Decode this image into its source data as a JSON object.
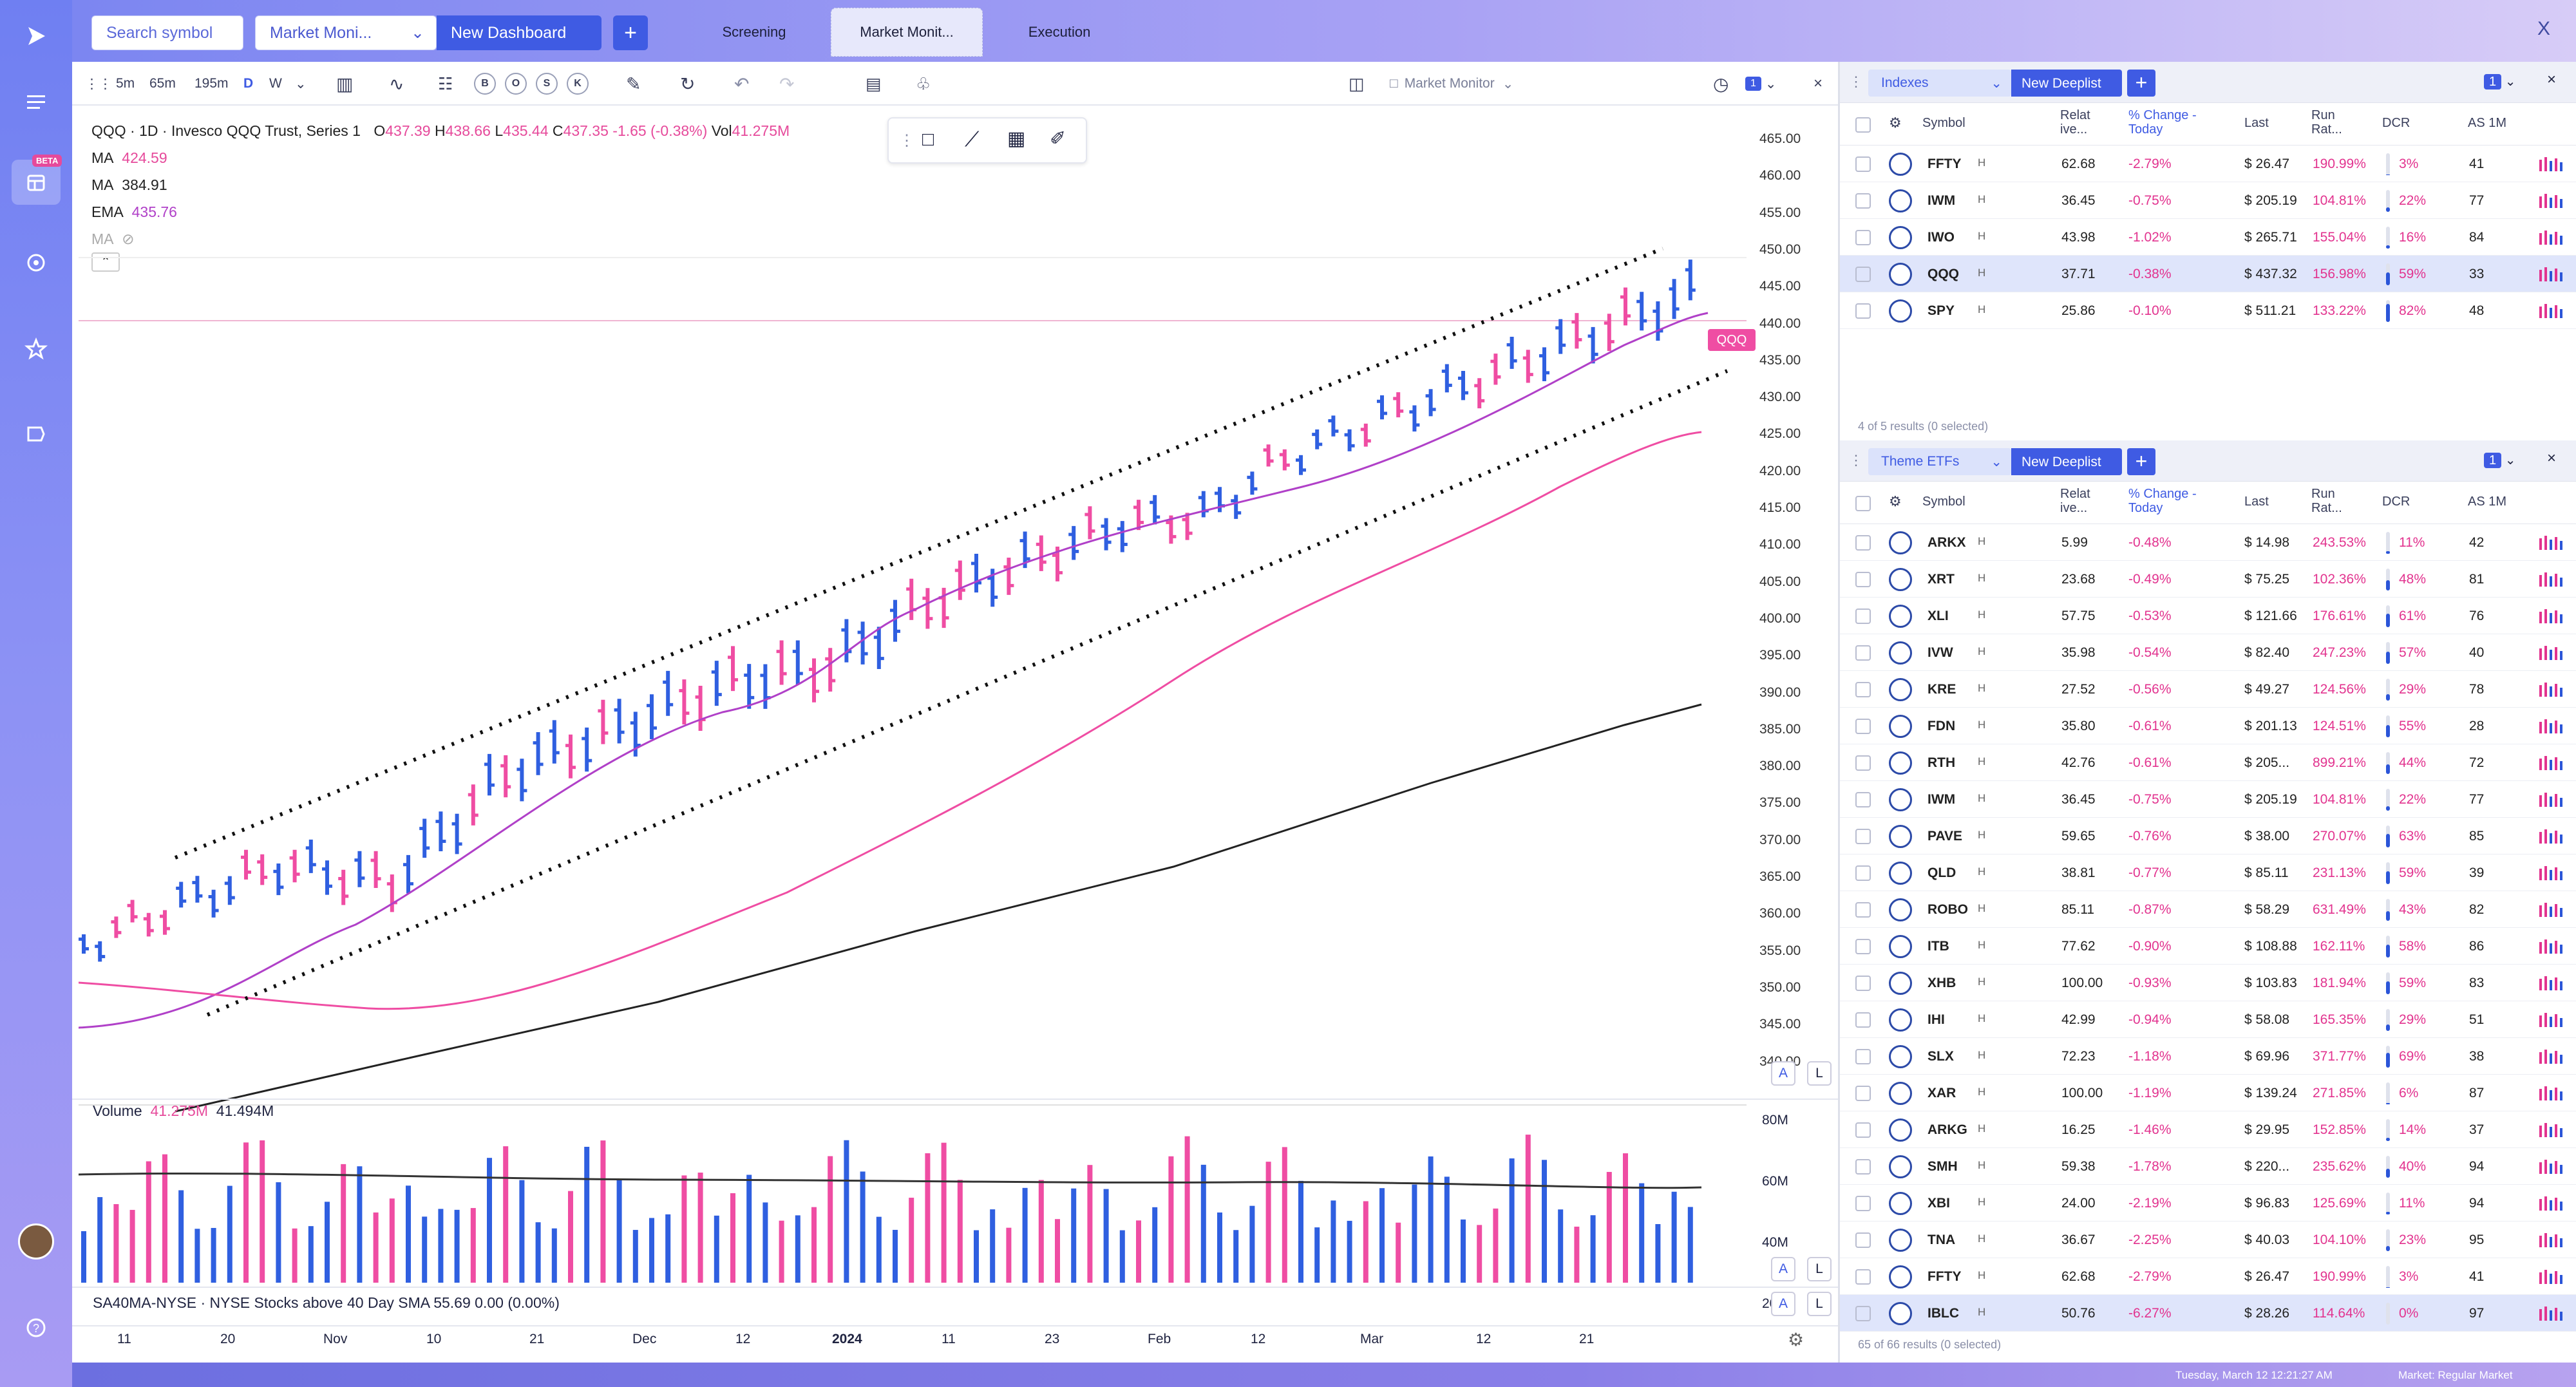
{
  "topbar": {
    "search_label": "Search symbol",
    "dashboard_select": "Market Moni...",
    "new_dashboard": "New Dashboard",
    "add_label": "+",
    "tabs": [
      "Screening",
      "Market Monit...",
      "Execution"
    ],
    "close_label": "X"
  },
  "sidebar": {
    "beta_badge": "BETA"
  },
  "chart_toolbar": {
    "intervals": [
      "5m",
      "65m",
      "195m",
      "D",
      "W"
    ],
    "badges": [
      "B",
      "O",
      "S",
      "K"
    ],
    "layout_name": "Market Monitor",
    "layout_count": "1",
    "close_label": "×"
  },
  "legend": {
    "symbol_line": "QQQ · 1D · Invesco QQQ Trust, Series 1",
    "o_label": "O",
    "o_val": "437.39",
    "h_label": "H",
    "h_val": "438.66",
    "l_label": "L",
    "l_val": "435.44",
    "c_label": "C",
    "c_val": "437.35",
    "chg": "-1.65 (-0.38%)",
    "vol_label": "Vol",
    "vol_val": "41.275M",
    "ma1_label": "MA",
    "ma1_val": "424.59",
    "ma2_label": "MA",
    "ma2_val": "384.91",
    "ema_label": "EMA",
    "ema_val": "435.76",
    "ma3_label": "MA"
  },
  "price_axis": [
    "465.00",
    "460.00",
    "455.00",
    "450.00",
    "445.00",
    "440.00",
    "435.00",
    "430.00",
    "425.00",
    "420.00",
    "415.00",
    "410.00",
    "405.00",
    "400.00",
    "395.00",
    "390.00",
    "385.00",
    "380.00",
    "375.00",
    "370.00",
    "365.00",
    "360.00",
    "355.00",
    "350.00",
    "345.00",
    "340.00"
  ],
  "price_tag": "QQQ",
  "volume": {
    "label": "Volume",
    "val1": "41.275M",
    "val2": "41.494M",
    "axis": [
      "80M",
      "60M",
      "40M",
      "20M"
    ]
  },
  "indicator_line": "SA40MA-NYSE · NYSE Stocks above 40 Day SMA  55.69  0.00 (0.00%)",
  "axis_buttons": [
    "A",
    "L"
  ],
  "time_axis": [
    "11",
    "20",
    "Nov",
    "10",
    "21",
    "Dec",
    "12",
    "2024",
    "11",
    "23",
    "Feb",
    "12",
    "Mar",
    "12",
    "21"
  ],
  "chart_data": {
    "type": "candlestick",
    "symbol": "QQQ",
    "interval": "1D",
    "ylim": [
      340,
      465
    ],
    "last_close": 437.35,
    "moving_averages": {
      "MA": 424.59,
      "MA_2": 384.91,
      "EMA": 435.76
    },
    "volume_last": "41.275M"
  },
  "indexes_panel": {
    "title": "Indexes",
    "new_deeplist": "New Deeplist",
    "count": "1",
    "columns": [
      "Symbol",
      "Relat ive...",
      "% Change - Today",
      "Last",
      "Run Rat...",
      "DCR",
      "AS 1M"
    ],
    "rows": [
      {
        "sym": "FFTY",
        "rel": "62.68",
        "chg": "-2.79%",
        "last": "$ 26.47",
        "run": "190.99%",
        "dcr": "3%",
        "as": "41",
        "dcrv": 3
      },
      {
        "sym": "IWM",
        "rel": "36.45",
        "chg": "-0.75%",
        "last": "$ 205.19",
        "run": "104.81%",
        "dcr": "22%",
        "as": "77",
        "dcrv": 22
      },
      {
        "sym": "IWO",
        "rel": "43.98",
        "chg": "-1.02%",
        "last": "$ 265.71",
        "run": "155.04%",
        "dcr": "16%",
        "as": "84",
        "dcrv": 16
      },
      {
        "sym": "QQQ",
        "rel": "37.71",
        "chg": "-0.38%",
        "last": "$ 437.32",
        "run": "156.98%",
        "dcr": "59%",
        "as": "33",
        "dcrv": 59
      },
      {
        "sym": "SPY",
        "rel": "25.86",
        "chg": "-0.10%",
        "last": "$ 511.21",
        "run": "133.22%",
        "dcr": "82%",
        "as": "48",
        "dcrv": 82
      }
    ],
    "footer": "4 of 5 results (0 selected)"
  },
  "theme_panel": {
    "title": "Theme ETFs",
    "new_deeplist": "New Deeplist",
    "count": "1",
    "columns": [
      "Symbol",
      "Relat ive...",
      "% Change - Today",
      "Last",
      "Run Rat...",
      "DCR",
      "AS 1M"
    ],
    "rows": [
      {
        "sym": "ARKX",
        "rel": "5.99",
        "chg": "-0.48%",
        "last": "$ 14.98",
        "run": "243.53%",
        "dcr": "11%",
        "as": "42",
        "dcrv": 11
      },
      {
        "sym": "XRT",
        "rel": "23.68",
        "chg": "-0.49%",
        "last": "$ 75.25",
        "run": "102.36%",
        "dcr": "48%",
        "as": "81",
        "dcrv": 48
      },
      {
        "sym": "XLI",
        "rel": "57.75",
        "chg": "-0.53%",
        "last": "$ 121.66",
        "run": "176.61%",
        "dcr": "61%",
        "as": "76",
        "dcrv": 61
      },
      {
        "sym": "IVW",
        "rel": "35.98",
        "chg": "-0.54%",
        "last": "$ 82.40",
        "run": "247.23%",
        "dcr": "57%",
        "as": "40",
        "dcrv": 57
      },
      {
        "sym": "KRE",
        "rel": "27.52",
        "chg": "-0.56%",
        "last": "$ 49.27",
        "run": "124.56%",
        "dcr": "29%",
        "as": "78",
        "dcrv": 29
      },
      {
        "sym": "FDN",
        "rel": "35.80",
        "chg": "-0.61%",
        "last": "$ 201.13",
        "run": "124.51%",
        "dcr": "55%",
        "as": "28",
        "dcrv": 55
      },
      {
        "sym": "RTH",
        "rel": "42.76",
        "chg": "-0.61%",
        "last": "$ 205...",
        "run": "899.21%",
        "dcr": "44%",
        "as": "72",
        "dcrv": 44
      },
      {
        "sym": "IWM",
        "rel": "36.45",
        "chg": "-0.75%",
        "last": "$ 205.19",
        "run": "104.81%",
        "dcr": "22%",
        "as": "77",
        "dcrv": 22
      },
      {
        "sym": "PAVE",
        "rel": "59.65",
        "chg": "-0.76%",
        "last": "$ 38.00",
        "run": "270.07%",
        "dcr": "63%",
        "as": "85",
        "dcrv": 63
      },
      {
        "sym": "QLD",
        "rel": "38.81",
        "chg": "-0.77%",
        "last": "$ 85.11",
        "run": "231.13%",
        "dcr": "59%",
        "as": "39",
        "dcrv": 59
      },
      {
        "sym": "ROBO",
        "rel": "85.11",
        "chg": "-0.87%",
        "last": "$ 58.29",
        "run": "631.49%",
        "dcr": "43%",
        "as": "82",
        "dcrv": 43
      },
      {
        "sym": "ITB",
        "rel": "77.62",
        "chg": "-0.90%",
        "last": "$ 108.88",
        "run": "162.11%",
        "dcr": "58%",
        "as": "86",
        "dcrv": 58
      },
      {
        "sym": "XHB",
        "rel": "100.00",
        "chg": "-0.93%",
        "last": "$ 103.83",
        "run": "181.94%",
        "dcr": "59%",
        "as": "83",
        "dcrv": 59
      },
      {
        "sym": "IHI",
        "rel": "42.99",
        "chg": "-0.94%",
        "last": "$ 58.08",
        "run": "165.35%",
        "dcr": "29%",
        "as": "51",
        "dcrv": 29
      },
      {
        "sym": "SLX",
        "rel": "72.23",
        "chg": "-1.18%",
        "last": "$ 69.96",
        "run": "371.77%",
        "dcr": "69%",
        "as": "38",
        "dcrv": 69
      },
      {
        "sym": "XAR",
        "rel": "100.00",
        "chg": "-1.19%",
        "last": "$ 139.24",
        "run": "271.85%",
        "dcr": "6%",
        "as": "87",
        "dcrv": 6
      },
      {
        "sym": "ARKG",
        "rel": "16.25",
        "chg": "-1.46%",
        "last": "$ 29.95",
        "run": "152.85%",
        "dcr": "14%",
        "as": "37",
        "dcrv": 14
      },
      {
        "sym": "SMH",
        "rel": "59.38",
        "chg": "-1.78%",
        "last": "$ 220...",
        "run": "235.62%",
        "dcr": "40%",
        "as": "94",
        "dcrv": 40
      },
      {
        "sym": "XBI",
        "rel": "24.00",
        "chg": "-2.19%",
        "last": "$ 96.83",
        "run": "125.69%",
        "dcr": "11%",
        "as": "94",
        "dcrv": 11
      },
      {
        "sym": "TNA",
        "rel": "36.67",
        "chg": "-2.25%",
        "last": "$ 40.03",
        "run": "104.10%",
        "dcr": "23%",
        "as": "95",
        "dcrv": 23
      },
      {
        "sym": "FFTY",
        "rel": "62.68",
        "chg": "-2.79%",
        "last": "$ 26.47",
        "run": "190.99%",
        "dcr": "3%",
        "as": "41",
        "dcrv": 3
      },
      {
        "sym": "IBLC",
        "rel": "50.76",
        "chg": "-6.27%",
        "last": "$ 28.26",
        "run": "114.64%",
        "dcr": "0%",
        "as": "97",
        "dcrv": 0
      }
    ],
    "footer": "65 of 66 results (0 selected)"
  },
  "statusbar": {
    "datetime": "Tuesday, March 12 12:21:27 AM",
    "market": "Market: Regular Market"
  },
  "colors": {
    "up": "#2f5fe0",
    "down": "#ef4da3",
    "accent": "#3f5be3"
  }
}
